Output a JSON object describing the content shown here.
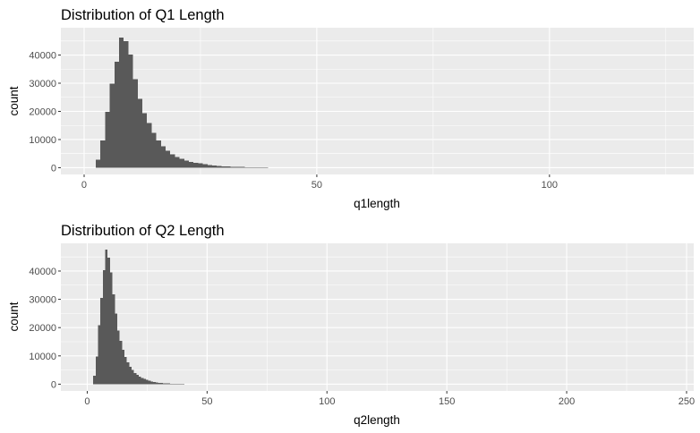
{
  "chart_data": [
    {
      "type": "bar",
      "title": "Distribution of Q1 Length",
      "xlabel": "q1length",
      "ylabel": "count",
      "xlim": [
        -5,
        131
      ],
      "ylim": [
        -2400,
        49700
      ],
      "x_ticks": [
        0,
        50,
        100
      ],
      "x_tick_labels": [
        "0",
        "50",
        "100"
      ],
      "y_ticks": [
        0,
        10000,
        20000,
        30000,
        40000
      ],
      "y_tick_labels": [
        "0",
        "10000",
        "20000",
        "30000",
        "40000"
      ],
      "grid": true,
      "legend": "none",
      "bar_color": "#595959",
      "panel_color": "#ebebeb",
      "bin_width": 1,
      "x": [
        3,
        4,
        5,
        6,
        7,
        8,
        9,
        10,
        11,
        12,
        13,
        14,
        15,
        16,
        17,
        18,
        19,
        20,
        21,
        22,
        23,
        24,
        25,
        26,
        27,
        28,
        29,
        30,
        31,
        32,
        33,
        34,
        35,
        36,
        37,
        38,
        39,
        40
      ],
      "values": [
        2800,
        9600,
        19800,
        29800,
        37600,
        46200,
        44900,
        40200,
        31500,
        24500,
        19400,
        15800,
        12400,
        9600,
        7600,
        6000,
        4800,
        3800,
        3100,
        2500,
        2100,
        1800,
        1500,
        1200,
        1000,
        800,
        650,
        500,
        420,
        340,
        280,
        230,
        190,
        150,
        120,
        100,
        80,
        60
      ]
    },
    {
      "type": "bar",
      "title": "Distribution of Q2 Length",
      "xlabel": "q2length",
      "ylabel": "count",
      "xlim": [
        -11,
        253
      ],
      "ylim": [
        -2400,
        49800
      ],
      "x_ticks": [
        0,
        50,
        100,
        150,
        200,
        250
      ],
      "x_tick_labels": [
        "0",
        "50",
        "100",
        "150",
        "200",
        "250"
      ],
      "y_ticks": [
        0,
        10000,
        20000,
        30000,
        40000
      ],
      "y_tick_labels": [
        "0",
        "10000",
        "20000",
        "30000",
        "40000"
      ],
      "grid": true,
      "legend": "none",
      "bar_color": "#595959",
      "panel_color": "#ebebeb",
      "bin_width": 1,
      "x": [
        3,
        4,
        5,
        6,
        7,
        8,
        9,
        10,
        11,
        12,
        13,
        14,
        15,
        16,
        17,
        18,
        19,
        20,
        21,
        22,
        23,
        24,
        25,
        26,
        27,
        28,
        29,
        30,
        31,
        32,
        33,
        34,
        35,
        36,
        37,
        38,
        39,
        40
      ],
      "values": [
        2900,
        9800,
        20800,
        30500,
        40300,
        47600,
        44800,
        39500,
        31800,
        25000,
        19000,
        15300,
        12200,
        9600,
        7700,
        6100,
        5000,
        4000,
        3300,
        2700,
        2200,
        1800,
        1500,
        1200,
        1000,
        800,
        650,
        500,
        420,
        350,
        280,
        230,
        190,
        150,
        120,
        100,
        80,
        60
      ]
    }
  ]
}
